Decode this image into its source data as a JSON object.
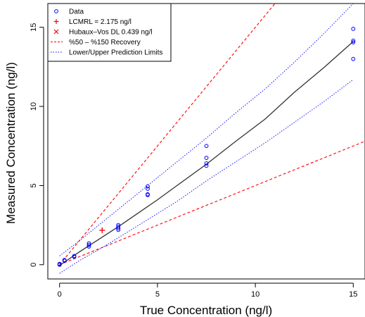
{
  "chart_data": {
    "type": "scatter",
    "xlabel": "True Concentration  (ng/l)",
    "ylabel": "Measured Concentration  (ng/l)",
    "xlim": [
      -0.6,
      15.6
    ],
    "ylim": [
      -0.9,
      16.5
    ],
    "xticks": [
      0,
      5,
      10,
      15
    ],
    "yticks": [
      0,
      5,
      10,
      15
    ],
    "grid": false,
    "legend_position": "top-left",
    "colors": {
      "data": "#0000ff",
      "lcmrl": "#ff0000",
      "hubaux": "#ff0000",
      "recovery": "#ff0000",
      "prediction": "#0000ff",
      "fit": "#333333"
    },
    "legend": [
      {
        "key": "data",
        "label": "Data"
      },
      {
        "key": "lcmrl",
        "label": "LCMRL = 2.175 ng/l"
      },
      {
        "key": "hubaux",
        "label": "Hubaux–Vos DL 0.439 ng/l"
      },
      {
        "key": "recovery",
        "label": "%50 – %150 Recovery"
      },
      {
        "key": "prediction",
        "label": "Lower/Upper Prediction Limits"
      }
    ],
    "data_points": [
      {
        "x": 0,
        "y": 0.02
      },
      {
        "x": 0,
        "y": 0.05
      },
      {
        "x": 0,
        "y": 0.0
      },
      {
        "x": 0,
        "y": 0.03
      },
      {
        "x": 0.25,
        "y": 0.25
      },
      {
        "x": 0.25,
        "y": 0.3
      },
      {
        "x": 0.75,
        "y": 0.5
      },
      {
        "x": 0.75,
        "y": 0.55
      },
      {
        "x": 1.5,
        "y": 1.15
      },
      {
        "x": 1.5,
        "y": 1.25
      },
      {
        "x": 1.5,
        "y": 1.35
      },
      {
        "x": 3,
        "y": 2.2
      },
      {
        "x": 3,
        "y": 2.3
      },
      {
        "x": 3,
        "y": 2.4
      },
      {
        "x": 3,
        "y": 2.5
      },
      {
        "x": 4.5,
        "y": 4.4
      },
      {
        "x": 4.5,
        "y": 4.45
      },
      {
        "x": 4.5,
        "y": 4.8
      },
      {
        "x": 4.5,
        "y": 4.95
      },
      {
        "x": 7.5,
        "y": 6.25
      },
      {
        "x": 7.5,
        "y": 6.4
      },
      {
        "x": 7.5,
        "y": 6.75
      },
      {
        "x": 7.5,
        "y": 7.5
      },
      {
        "x": 15,
        "y": 13.0
      },
      {
        "x": 15,
        "y": 14.05
      },
      {
        "x": 15,
        "y": 14.15
      },
      {
        "x": 15,
        "y": 14.9
      }
    ],
    "lcmrl": {
      "x": 2.175,
      "y": 2.175
    },
    "hubaux_vos_dl": 0.439,
    "recovery_lines": [
      {
        "slope": 0.5
      },
      {
        "slope": 1.5
      }
    ],
    "fit_curve": [
      {
        "x": 0,
        "y": -0.05
      },
      {
        "x": 1,
        "y": 0.8
      },
      {
        "x": 2,
        "y": 1.6
      },
      {
        "x": 3,
        "y": 2.4
      },
      {
        "x": 4,
        "y": 3.25
      },
      {
        "x": 5,
        "y": 4.1
      },
      {
        "x": 6,
        "y": 5.0
      },
      {
        "x": 7.5,
        "y": 6.35
      },
      {
        "x": 9,
        "y": 7.8
      },
      {
        "x": 10.5,
        "y": 9.2
      },
      {
        "x": 12,
        "y": 10.9
      },
      {
        "x": 13.5,
        "y": 12.45
      },
      {
        "x": 15,
        "y": 14.1
      }
    ],
    "upper_prediction": [
      {
        "x": 0,
        "y": 0.55
      },
      {
        "x": 1,
        "y": 1.5
      },
      {
        "x": 2,
        "y": 2.5
      },
      {
        "x": 3,
        "y": 3.5
      },
      {
        "x": 4.5,
        "y": 5.0
      },
      {
        "x": 6,
        "y": 6.5
      },
      {
        "x": 7.5,
        "y": 8.0
      },
      {
        "x": 9,
        "y": 9.6
      },
      {
        "x": 10.5,
        "y": 11.1
      },
      {
        "x": 12,
        "y": 12.8
      },
      {
        "x": 13.5,
        "y": 14.6
      },
      {
        "x": 15,
        "y": 16.5
      }
    ],
    "lower_prediction": [
      {
        "x": 0,
        "y": -0.55
      },
      {
        "x": 1,
        "y": 0.25
      },
      {
        "x": 2,
        "y": 0.95
      },
      {
        "x": 3,
        "y": 1.7
      },
      {
        "x": 4.5,
        "y": 2.85
      },
      {
        "x": 6,
        "y": 4.0
      },
      {
        "x": 7.5,
        "y": 5.3
      },
      {
        "x": 9,
        "y": 6.5
      },
      {
        "x": 10.5,
        "y": 7.7
      },
      {
        "x": 12,
        "y": 9.0
      },
      {
        "x": 13.5,
        "y": 10.3
      },
      {
        "x": 15,
        "y": 11.7
      }
    ]
  }
}
